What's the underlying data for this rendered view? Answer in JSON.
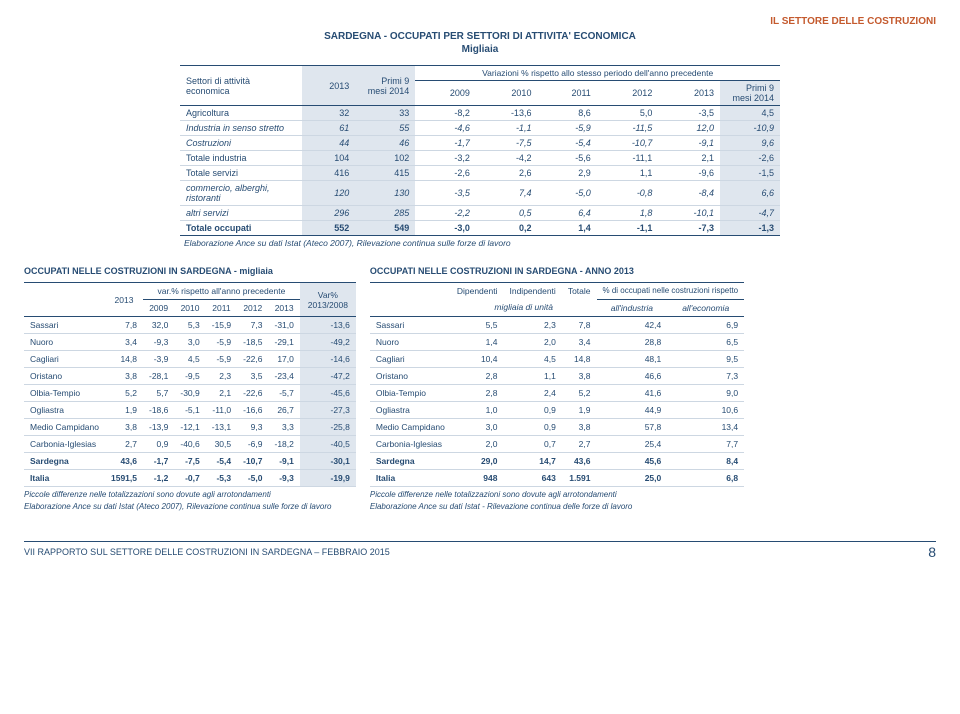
{
  "header": {
    "section": "IL SETTORE DELLE COSTRUZIONI",
    "title_l1": "SARDEGNA - OCCUPATI PER SETTORI DI ATTIVITA' ECONOMICA",
    "title_l2": "Migliaia"
  },
  "top": {
    "head": {
      "settori": "Settori di attività economica",
      "y2013": "2013",
      "primi9": "Primi 9 mesi 2014",
      "var": "Variazioni % rispetto allo stesso periodo dell'anno precedente",
      "y2009": "2009",
      "y2010": "2010",
      "y2011": "2011",
      "y2012": "2012",
      "y2013b": "2013",
      "primi9b": "Primi 9 mesi 2014"
    },
    "rows": [
      {
        "label": "Agricoltura",
        "v": [
          "32",
          "33",
          "-8,2",
          "-13,6",
          "8,6",
          "5,0",
          "-3,5",
          "4,5"
        ],
        "bold": false
      },
      {
        "label": "Industria in senso stretto",
        "v": [
          "61",
          "55",
          "-4,6",
          "-1,1",
          "-5,9",
          "-11,5",
          "12,0",
          "-10,9"
        ],
        "bold": false,
        "italic": true
      },
      {
        "label": "Costruzioni",
        "v": [
          "44",
          "46",
          "-1,7",
          "-7,5",
          "-5,4",
          "-10,7",
          "-9,1",
          "9,6"
        ],
        "bold": false,
        "italic": true
      },
      {
        "label": "Totale industria",
        "v": [
          "104",
          "102",
          "-3,2",
          "-4,2",
          "-5,6",
          "-11,1",
          "2,1",
          "-2,6"
        ],
        "bold": false
      },
      {
        "label": "Totale servizi",
        "v": [
          "416",
          "415",
          "-2,6",
          "2,6",
          "2,9",
          "1,1",
          "-9,6",
          "-1,5"
        ],
        "bold": false
      },
      {
        "label": "commercio, alberghi, ristoranti",
        "v": [
          "120",
          "130",
          "-3,5",
          "7,4",
          "-5,0",
          "-0,8",
          "-8,4",
          "6,6"
        ],
        "bold": false,
        "italic": true
      },
      {
        "label": "altri servizi",
        "v": [
          "296",
          "285",
          "-2,2",
          "0,5",
          "6,4",
          "1,8",
          "-10,1",
          "-4,7"
        ],
        "bold": false,
        "italic": true
      },
      {
        "label": "Totale occupati",
        "v": [
          "552",
          "549",
          "-3,0",
          "0,2",
          "1,4",
          "-1,1",
          "-7,3",
          "-1,3"
        ],
        "bold": true
      }
    ],
    "note": "Elaborazione Ance su dati Istat (Ateco 2007), Rilevazione continua sulle forze di lavoro"
  },
  "left": {
    "title": "OCCUPATI NELLE COSTRUZIONI IN SARDEGNA - migliaia",
    "head": {
      "y2013": "2013",
      "var": "var.% rispetto all'anno precedente",
      "varcol": "Var% 2013/2008",
      "y2009": "2009",
      "y2010": "2010",
      "y2011": "2011",
      "y2012": "2012",
      "y2013b": "2013"
    },
    "rows": [
      {
        "label": "Sassari",
        "v": [
          "7,8",
          "32,0",
          "5,3",
          "-15,9",
          "7,3",
          "-31,0",
          "-13,6"
        ]
      },
      {
        "label": "Nuoro",
        "v": [
          "3,4",
          "-9,3",
          "3,0",
          "-5,9",
          "-18,5",
          "-29,1",
          "-49,2"
        ]
      },
      {
        "label": "Cagliari",
        "v": [
          "14,8",
          "-3,9",
          "4,5",
          "-5,9",
          "-22,6",
          "17,0",
          "-14,6"
        ]
      },
      {
        "label": "Oristano",
        "v": [
          "3,8",
          "-28,1",
          "-9,5",
          "2,3",
          "3,5",
          "-23,4",
          "-47,2"
        ]
      },
      {
        "label": "Olbia-Tempio",
        "v": [
          "5,2",
          "5,7",
          "-30,9",
          "2,1",
          "-22,6",
          "-5,7",
          "-45,6"
        ]
      },
      {
        "label": "Ogliastra",
        "v": [
          "1,9",
          "-18,6",
          "-5,1",
          "-11,0",
          "-16,6",
          "26,7",
          "-27,3"
        ]
      },
      {
        "label": "Medio Campidano",
        "v": [
          "3,8",
          "-13,9",
          "-12,1",
          "-13,1",
          "9,3",
          "3,3",
          "-25,8"
        ]
      },
      {
        "label": "Carbonia-Iglesias",
        "v": [
          "2,7",
          "0,9",
          "-40,6",
          "30,5",
          "-6,9",
          "-18,2",
          "-40,5"
        ]
      },
      {
        "label": "Sardegna",
        "v": [
          "43,6",
          "-1,7",
          "-7,5",
          "-5,4",
          "-10,7",
          "-9,1",
          "-30,1"
        ],
        "bold": true
      },
      {
        "label": "Italia",
        "v": [
          "1591,5",
          "-1,2",
          "-0,7",
          "-5,3",
          "-5,0",
          "-9,3",
          "-19,9"
        ],
        "bold": true
      }
    ],
    "note1": "Piccole differenze nelle totalizzazioni sono dovute agli arrotondamenti",
    "note2": "Elaborazione Ance su dati Istat (Ateco 2007), Rilevazione continua sulle forze di lavoro"
  },
  "right": {
    "title": "OCCUPATI NELLE COSTRUZIONI IN SARDEGNA - ANNO 2013",
    "head": {
      "dip": "Dipendenti",
      "indip": "Indipendenti",
      "tot": "Totale",
      "pct": "% di occupati nelle costruzioni rispetto",
      "unit": "migliaia di unità",
      "allind": "all'industria",
      "allecon": "all'economia"
    },
    "rows": [
      {
        "label": "Sassari",
        "v": [
          "5,5",
          "2,3",
          "7,8",
          "42,4",
          "6,9"
        ]
      },
      {
        "label": "Nuoro",
        "v": [
          "1,4",
          "2,0",
          "3,4",
          "28,8",
          "6,5"
        ]
      },
      {
        "label": "Cagliari",
        "v": [
          "10,4",
          "4,5",
          "14,8",
          "48,1",
          "9,5"
        ]
      },
      {
        "label": "Oristano",
        "v": [
          "2,8",
          "1,1",
          "3,8",
          "46,6",
          "7,3"
        ]
      },
      {
        "label": "Olbia-Tempio",
        "v": [
          "2,8",
          "2,4",
          "5,2",
          "41,6",
          "9,0"
        ]
      },
      {
        "label": "Ogliastra",
        "v": [
          "1,0",
          "0,9",
          "1,9",
          "44,9",
          "10,6"
        ]
      },
      {
        "label": "Medio Campidano",
        "v": [
          "3,0",
          "0,9",
          "3,8",
          "57,8",
          "13,4"
        ]
      },
      {
        "label": "Carbonia-Iglesias",
        "v": [
          "2,0",
          "0,7",
          "2,7",
          "25,4",
          "7,7"
        ]
      },
      {
        "label": "Sardegna",
        "v": [
          "29,0",
          "14,7",
          "43,6",
          "45,6",
          "8,4"
        ],
        "bold": true
      },
      {
        "label": "Italia",
        "v": [
          "948",
          "643",
          "1.591",
          "25,0",
          "6,8"
        ],
        "bold": true
      }
    ],
    "note1": "Piccole differenze nelle totalizzazioni sono dovute agli arrotondamenti",
    "note2": "Elaborazione Ance su dati Istat - Rilevazione continua delle forze di lavoro"
  },
  "footer": {
    "text": "VII RAPPORTO SUL SETTORE DELLE COSTRUZIONI IN SARDEGNA – FEBBRAIO 2015",
    "page": "8"
  }
}
